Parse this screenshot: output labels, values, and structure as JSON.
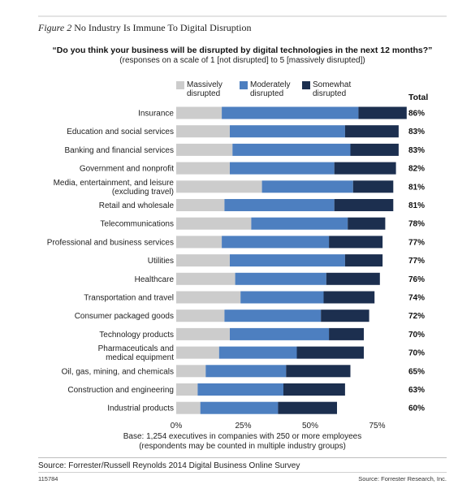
{
  "figure": {
    "label": "Figure 2",
    "title": "No Industry Is Immune To Digital Disruption",
    "question": "“Do you think your business will be disrupted by digital technologies in the next 12 months?”",
    "scale_note": "(responses on a scale of 1 [not disrupted] to 5 [massively disrupted])",
    "base_line1": "Base: 1,254 executives in companies with 250 or more employees",
    "base_line2": "(respondents may be counted in multiple industry groups)",
    "source": "Source: Forrester/Russell Reynolds 2014 Digital Business Online Survey",
    "figure_id": "115784",
    "publisher": "Source: Forrester Research, Inc."
  },
  "colors": {
    "massively": "#cccccc",
    "moderately": "#4d7fc0",
    "somewhat": "#1c2f4f"
  },
  "chart_data": {
    "type": "bar",
    "orientation": "horizontal",
    "stacked": true,
    "categories": [
      [
        "Insurance"
      ],
      [
        "Education and social services"
      ],
      [
        "Banking and financial services"
      ],
      [
        "Government and nonprofit"
      ],
      [
        "Media, entertainment, and leisure",
        "(excluding travel)"
      ],
      [
        "Retail and wholesale"
      ],
      [
        "Telecommunications"
      ],
      [
        "Professional and business services"
      ],
      [
        "Utilities"
      ],
      [
        "Healthcare"
      ],
      [
        "Transportation and travel"
      ],
      [
        "Consumer packaged goods"
      ],
      [
        "Technology products"
      ],
      [
        "Pharmaceuticals and",
        "medical equipment"
      ],
      [
        "Oil, gas, mining, and chemicals"
      ],
      [
        "Construction and engineering"
      ],
      [
        "Industrial products"
      ]
    ],
    "series": [
      {
        "name": "Massively disrupted",
        "legend_lines": [
          "Massively",
          "disrupted"
        ],
        "values": [
          17,
          20,
          21,
          20,
          32,
          18,
          28,
          17,
          20,
          22,
          24,
          18,
          20,
          16,
          11,
          8,
          9
        ]
      },
      {
        "name": "Moderately disrupted",
        "legend_lines": [
          "Moderately",
          "disrupted"
        ],
        "values": [
          51,
          43,
          44,
          39,
          34,
          41,
          36,
          40,
          43,
          34,
          31,
          36,
          37,
          29,
          30,
          32,
          29
        ]
      },
      {
        "name": "Somewhat disrupted",
        "legend_lines": [
          "Somewhat",
          "disrupted"
        ],
        "values": [
          18,
          20,
          18,
          23,
          15,
          22,
          14,
          20,
          14,
          20,
          19,
          18,
          13,
          25,
          24,
          23,
          22
        ]
      }
    ],
    "totals_header": "Total",
    "totals": [
      "86%",
      "83%",
      "83%",
      "82%",
      "81%",
      "81%",
      "78%",
      "77%",
      "77%",
      "76%",
      "74%",
      "72%",
      "70%",
      "70%",
      "65%",
      "63%",
      "60%"
    ],
    "x_ticks": [
      0,
      25,
      50,
      75
    ],
    "x_tick_labels": [
      "0%",
      "25%",
      "50%",
      "75%"
    ],
    "xlim": [
      0,
      100
    ],
    "legend_position": "top",
    "grid": false
  }
}
